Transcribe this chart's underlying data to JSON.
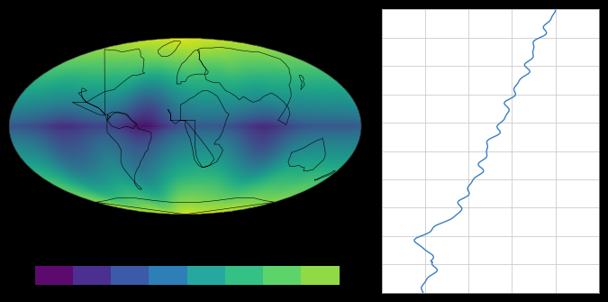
{
  "background_color": "#000000",
  "cmap_name": "viridis",
  "colorbar_colors": [
    "#5c0a6e",
    "#4b3091",
    "#3b5aa8",
    "#2e7fb8",
    "#27a89e",
    "#35c186",
    "#5dd46a",
    "#8fda45"
  ],
  "line_color": "#3a7fc1",
  "line_width": 1.0,
  "right_panel_bg": "#ffffff",
  "right_panel_grid_color": "#cccccc",
  "fig_width": 6.75,
  "fig_height": 3.35,
  "map_vmin": -0.35,
  "map_vmax": 1.0
}
